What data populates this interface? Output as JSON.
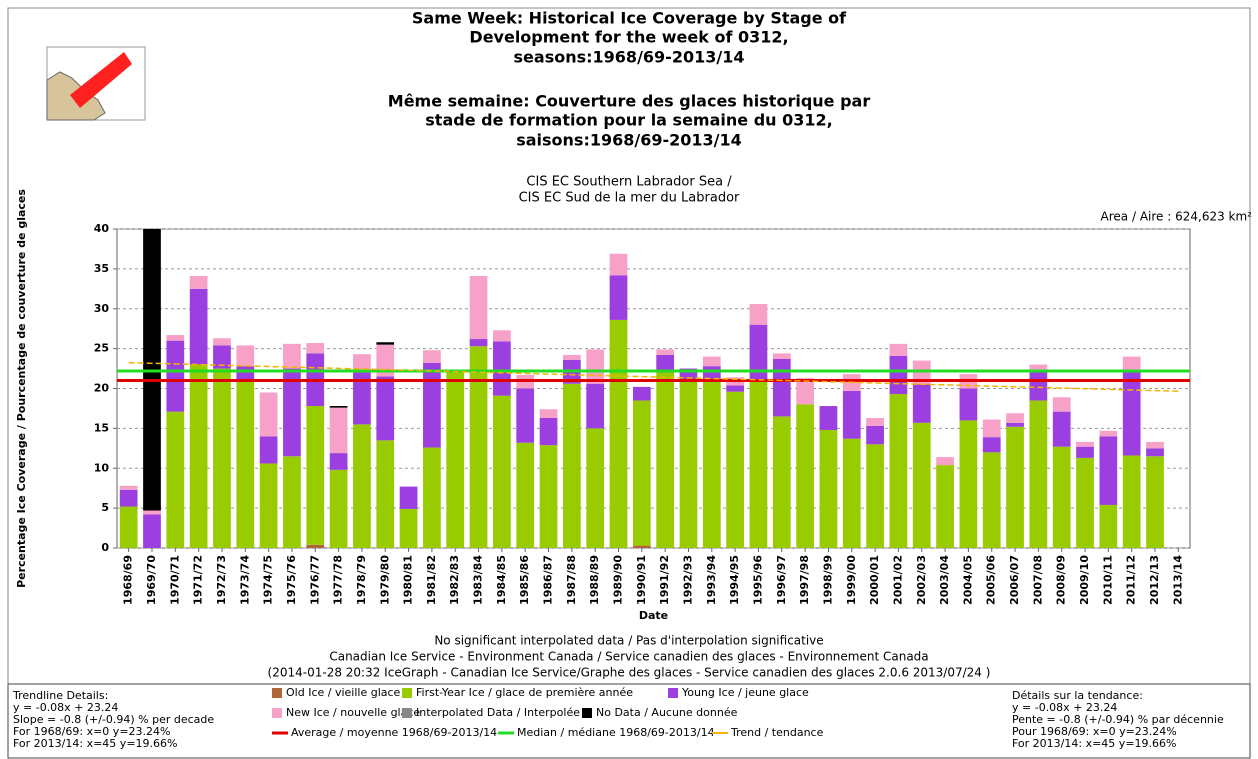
{
  "chart_data": {
    "type": "bar",
    "stacked": true,
    "title": [
      "Same Week: Historical Ice Coverage by Stage of",
      "Development for the week of 0312,",
      "seasons:1968/69-2013/14",
      "Même semaine: Couverture des glaces historique par",
      "stade de formation pour la semaine du 0312,",
      "saisons:1968/69-2013/14"
    ],
    "subtitle": [
      "CIS EC Southern Labrador Sea /",
      "CIS EC Sud de la mer du Labrador"
    ],
    "area_label": "Area / Aire : 624,623 km²",
    "y_label": "Percentage Ice Coverage / Pourcentage de couverture de glaces",
    "x_label": "Date",
    "ylim": [
      0,
      40
    ],
    "yticks": [
      0,
      5,
      10,
      15,
      20,
      25,
      30,
      35,
      40
    ],
    "grid": true,
    "categories": [
      "1968/69",
      "1969/70",
      "1970/71",
      "1971/72",
      "1972/73",
      "1973/74",
      "1974/75",
      "1975/76",
      "1976/77",
      "1977/78",
      "1978/79",
      "1979/80",
      "1980/81",
      "1981/82",
      "1982/83",
      "1983/84",
      "1984/85",
      "1985/86",
      "1986/87",
      "1987/88",
      "1988/89",
      "1989/90",
      "1990/91",
      "1991/92",
      "1992/93",
      "1993/94",
      "1994/95",
      "1995/96",
      "1996/97",
      "1997/98",
      "1998/99",
      "1999/00",
      "2000/01",
      "2001/02",
      "2002/03",
      "2003/04",
      "2004/05",
      "2005/06",
      "2006/07",
      "2007/08",
      "2008/09",
      "2009/10",
      "2010/11",
      "2011/12",
      "2012/13",
      "2013/14"
    ],
    "series": [
      {
        "name": "Old Ice / vieille glace",
        "color": "#b0643a",
        "values": [
          0,
          0,
          0,
          0,
          0,
          0,
          0,
          0,
          0.4,
          0,
          0,
          0,
          0,
          0,
          0,
          0,
          0,
          0,
          0,
          0,
          0,
          0,
          0.3,
          0,
          0,
          0,
          0,
          0,
          0,
          0,
          0,
          0,
          0,
          0,
          0,
          0,
          0,
          0,
          0,
          0,
          0,
          0,
          0,
          0,
          0,
          0
        ]
      },
      {
        "name": "First-Year Ice / glace de première année",
        "color": "#99cc00",
        "values": [
          5.2,
          0,
          17.1,
          23.0,
          22.5,
          21.0,
          10.6,
          11.5,
          17.4,
          9.8,
          15.5,
          13.5,
          4.9,
          12.6,
          22.1,
          25.3,
          19.1,
          13.2,
          12.9,
          20.6,
          15.0,
          28.6,
          18.2,
          22.0,
          21.0,
          21.0,
          19.6,
          21.0,
          16.5,
          18.0,
          14.8,
          13.7,
          13.0,
          19.3,
          15.7,
          10.4,
          16.0,
          12.0,
          15.2,
          18.5,
          12.7,
          11.3,
          5.4,
          11.6,
          11.5,
          0
        ]
      },
      {
        "name": "Young Ice / jeune glace",
        "color": "#9b3fe0",
        "values": [
          2.1,
          4.2,
          8.9,
          9.5,
          2.9,
          1.8,
          3.4,
          11.0,
          6.6,
          2.1,
          6.5,
          8.0,
          2.8,
          10.6,
          0.2,
          0.9,
          6.8,
          6.8,
          3.4,
          3.0,
          5.6,
          5.6,
          1.7,
          2.2,
          1.5,
          1.8,
          0.8,
          7.0,
          7.2,
          0,
          3.0,
          6.0,
          2.3,
          4.8,
          4.8,
          0,
          4.0,
          1.9,
          0.5,
          3.9,
          4.4,
          1.4,
          8.6,
          10.8,
          1.0,
          0
        ]
      },
      {
        "name": "New Ice / nouvelle glace",
        "color": "#f7a1c8",
        "values": [
          0.5,
          0.5,
          0.7,
          1.6,
          0.9,
          2.6,
          5.5,
          3.1,
          1.3,
          5.7,
          2.3,
          4.0,
          0,
          1.6,
          0,
          7.9,
          1.4,
          1.7,
          1.1,
          0.6,
          4.3,
          2.7,
          0,
          0.7,
          0,
          1.2,
          1.0,
          2.6,
          0.7,
          3.3,
          0,
          2.1,
          1.0,
          1.5,
          3.0,
          1.0,
          1.8,
          2.2,
          1.2,
          0.6,
          1.8,
          0.6,
          0.7,
          1.6,
          0.8,
          0
        ]
      },
      {
        "name": "Interpolated Data / Interpolée",
        "color": "#888888",
        "values": [
          0,
          0,
          0,
          0,
          0,
          0,
          0,
          0,
          0,
          0,
          0,
          0,
          0,
          0,
          0,
          0,
          0,
          0,
          0,
          0,
          0,
          0,
          0,
          0,
          0,
          0,
          0,
          0,
          0,
          0,
          0,
          0,
          0,
          0,
          0,
          0,
          0,
          0,
          0,
          0,
          0,
          0,
          0,
          0,
          0,
          0
        ]
      },
      {
        "name": "No Data / Aucune donnée",
        "color": "#000000",
        "values": [
          0,
          35.3,
          0,
          0,
          0,
          0,
          0,
          0,
          0,
          0.2,
          0,
          0.3,
          0,
          0,
          0,
          0,
          0,
          0,
          0,
          0,
          0,
          0,
          0,
          0,
          0,
          0,
          0,
          0,
          0,
          0,
          0,
          0,
          0,
          0,
          0,
          0,
          0,
          0,
          0,
          0,
          0,
          0,
          0,
          0,
          0,
          0
        ]
      }
    ],
    "lines": [
      {
        "name": "Average / moyenne 1968/69-2013/14",
        "color": "#e00000",
        "value": 21.0
      },
      {
        "name": "Median / médiane 1968/69-2013/14",
        "color": "#22dd22",
        "value": 22.2
      }
    ],
    "trend": {
      "name": "Trend / tendance",
      "color": "#f5b400",
      "x": [
        0,
        45
      ],
      "values": [
        23.24,
        19.66
      ]
    },
    "notes": [
      "No significant interpolated data / Pas d'interpolation significative",
      "Canadian Ice Service - Environment Canada / Service canadien des glaces - Environnement Canada",
      "(2014-01-28 20:32 IceGraph - Canadian Ice Service/Graphe des glaces - Service canadien des glaces 2.0.6 2013/07/24 )"
    ],
    "trend_details_en": [
      "Trendline Details:",
      "y = -0.08x + 23.24",
      "Slope = -0.8 (+/-0.94) % per decade",
      "For 1968/69: x=0  y=23.24%",
      "For 2013/14: x=45  y=19.66%"
    ],
    "trend_details_fr": [
      "Détails sur la tendance:",
      "y = -0.08x + 23.24",
      "Pente = -0.8 (+/-0.94) % par décennie",
      "Pour 1968/69: x=0  y=23.24%",
      "For 2013/14: x=45  y=19.66%"
    ]
  }
}
